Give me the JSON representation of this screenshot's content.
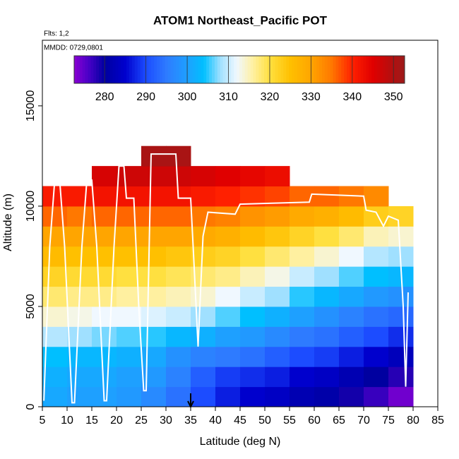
{
  "chart_data": {
    "type": "curtain",
    "title": "ATOM1 Northeast_Pacific POT",
    "subtitle": "Flts: 1,2",
    "annotation": "MMDD: 0729,0801",
    "x_label": "Latitude (deg N)",
    "y_label": "Altitude (m)",
    "xlim": [
      5,
      85
    ],
    "ylim": [
      0,
      18270
    ],
    "xticks": [
      5,
      10,
      15,
      20,
      25,
      30,
      35,
      40,
      45,
      50,
      55,
      60,
      65,
      70,
      75,
      80,
      85
    ],
    "yticks": [
      0,
      5000,
      10000,
      15000
    ],
    "lat_bins": [
      5,
      10,
      15,
      20,
      25,
      30,
      35,
      40,
      45,
      50,
      55,
      60,
      65,
      70,
      75,
      80
    ],
    "alt_bins": [
      0,
      1000,
      2000,
      3000,
      4000,
      5000,
      6000,
      7000,
      8000,
      9000,
      10000,
      11000,
      12000,
      13000
    ],
    "values": [
      [
        301,
        302,
        304,
        309,
        314,
        318,
        322,
        326,
        330,
        336,
        341,
        null,
        null
      ],
      [
        300,
        301,
        303,
        308,
        313,
        317,
        321,
        325,
        330,
        335,
        341,
        null,
        null
      ],
      [
        300,
        301,
        303,
        307,
        312,
        317,
        321,
        325,
        330,
        336,
        342,
        346,
        null
      ],
      [
        299,
        300,
        302,
        306,
        312,
        316,
        320,
        325,
        330,
        336,
        342,
        347,
        null
      ],
      [
        297,
        299,
        301,
        305,
        311,
        316,
        320,
        325,
        330,
        336,
        342,
        347,
        351
      ],
      [
        294,
        296,
        298,
        303,
        310,
        315,
        319,
        324,
        330,
        336,
        342,
        347,
        351
      ],
      [
        290,
        292,
        296,
        302,
        308,
        314,
        318,
        323,
        329,
        335,
        341,
        346,
        null
      ],
      [
        287,
        289,
        295,
        300,
        306,
        312,
        317,
        322,
        328,
        334,
        340,
        345,
        null
      ],
      [
        285,
        288,
        294,
        299,
        304,
        310,
        315,
        320,
        326,
        332,
        339,
        344,
        null
      ],
      [
        284,
        287,
        292,
        297,
        302,
        308,
        313,
        318,
        324,
        331,
        338,
        343,
        null
      ],
      [
        282,
        285,
        290,
        295,
        300,
        305,
        310,
        316,
        322,
        329,
        336,
        null,
        null
      ],
      [
        281,
        284,
        289,
        294,
        298,
        303,
        308,
        314,
        320,
        328,
        336,
        null,
        null
      ],
      [
        279,
        282,
        287,
        292,
        296,
        301,
        306,
        312,
        318,
        326,
        335,
        null,
        null
      ],
      [
        277,
        280,
        285,
        290,
        294,
        299,
        304,
        309,
        315,
        323,
        333,
        null,
        null
      ],
      [
        274,
        278,
        283,
        288,
        293,
        298,
        303,
        308,
        314,
        322,
        null,
        null,
        null
      ]
    ],
    "track": {
      "color": "#ffffff",
      "x": [
        5.3,
        6.5,
        7.5,
        8.5,
        9.5,
        11,
        11.5,
        13,
        14,
        15,
        16,
        17.5,
        18,
        19.5,
        20.5,
        21.5,
        22,
        23.5,
        24.5,
        25.5,
        26,
        27,
        32,
        32.5,
        35,
        35.5,
        36.5,
        37.5,
        38.5,
        44,
        45,
        59,
        59.5,
        70,
        70.5,
        72.5,
        74,
        75,
        77,
        78,
        78.5,
        79
      ],
      "y": [
        300,
        8000,
        11300,
        11300,
        8000,
        200,
        200,
        8000,
        11300,
        11300,
        8000,
        300,
        300,
        8000,
        12000,
        12000,
        10400,
        10400,
        5000,
        800,
        800,
        12600,
        12600,
        10400,
        10400,
        8000,
        3000,
        8500,
        9700,
        9600,
        10100,
        10200,
        10600,
        10500,
        9800,
        9700,
        9000,
        9500,
        9300,
        5000,
        1000,
        5700
      ]
    },
    "clim": [
      272.6,
      352.7
    ],
    "colorbar_ticks": [
      280,
      290,
      300,
      310,
      320,
      330,
      340,
      350
    ],
    "colorscale": [
      [
        272,
        "#9400d3"
      ],
      [
        276,
        "#4b00c8"
      ],
      [
        280,
        "#0000a0"
      ],
      [
        285,
        "#0000cd"
      ],
      [
        290,
        "#1c4cff"
      ],
      [
        295,
        "#2e7bff"
      ],
      [
        300,
        "#1ea0ff"
      ],
      [
        304,
        "#00bfff"
      ],
      [
        308,
        "#a0e0ff"
      ],
      [
        312,
        "#f0f8ff"
      ],
      [
        316,
        "#fff0a0"
      ],
      [
        320,
        "#ffe040"
      ],
      [
        325,
        "#ffc000"
      ],
      [
        330,
        "#ffa500"
      ],
      [
        335,
        "#ff7800"
      ],
      [
        340,
        "#ff2000"
      ],
      [
        345,
        "#e00000"
      ],
      [
        350,
        "#b01010"
      ],
      [
        353,
        "#9b1c1c"
      ]
    ]
  }
}
